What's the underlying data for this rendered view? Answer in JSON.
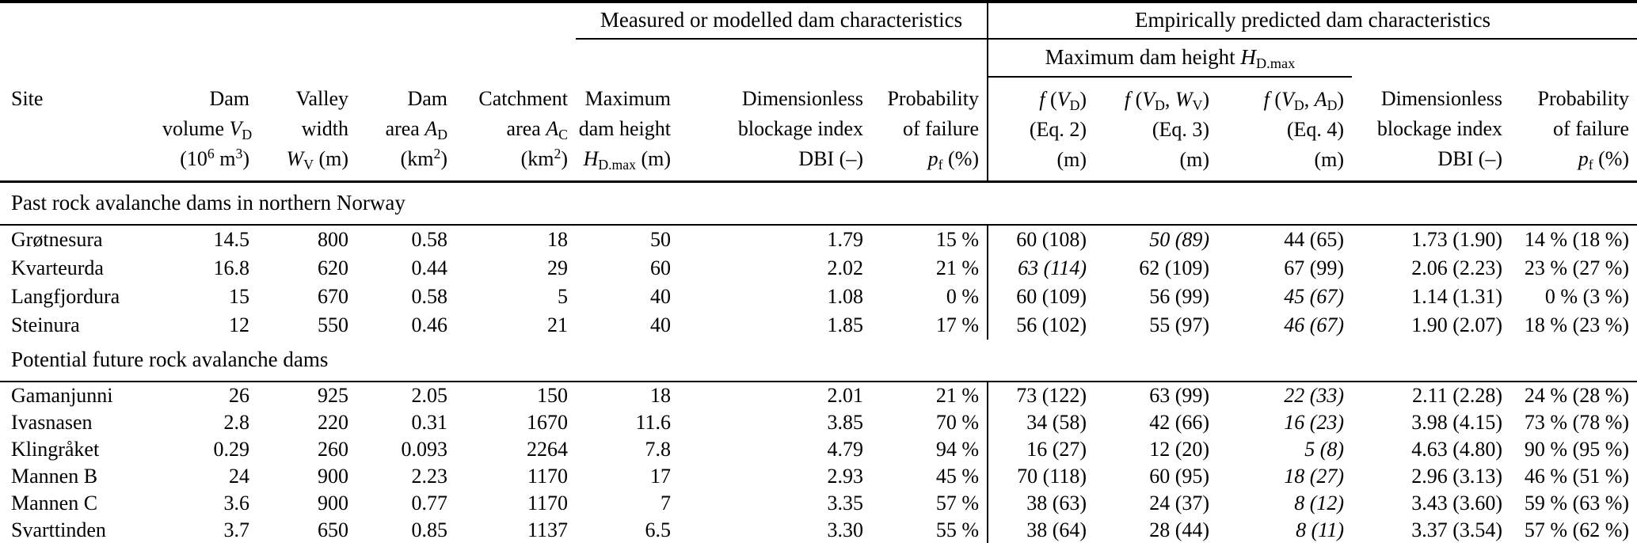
{
  "colors": {
    "background": "#ffffff",
    "text": "#000000",
    "rules": "#000000"
  },
  "table": {
    "groups": {
      "measured": "Measured or modelled dam characteristics",
      "predicted": "Empirically predicted dam characteristics",
      "max_height": "Maximum dam height <i>H</i><sub>D.max</sub>"
    },
    "columns": [
      "Site",
      "Dam<br>volume <i>V</i><sub>D</sub><br>(10<sup>6</sup> m<sup>3</sup>)",
      "Valley<br>width<br><i>W</i><sub>V</sub> (m)",
      "Dam<br>area <i>A</i><sub>D</sub><br>(km<sup>2</sup>)",
      "Catchment<br>area <i>A</i><sub>C</sub><br>(km<sup>2</sup>)",
      "Maximum<br>dam height<br><i>H</i><sub>D.max</sub> (m)",
      "Dimensionless<br>blockage index<br>DBI (–)",
      "Probability<br>of failure<br><i>p</i><sub>f</sub> (%)",
      "<i>f</i> (<i>V</i><sub>D</sub>)<br>(Eq. 2)<br>(m)",
      "<i>f</i> (<i>V</i><sub>D</sub>, <i>W</i><sub>V</sub>)<br>(Eq. 3)<br>(m)",
      "<i>f</i> (<i>V</i><sub>D</sub>, <i>A</i><sub>D</sub>)<br>(Eq. 4)<br>(m)",
      "Dimensionless<br>blockage index<br>DBI (–)",
      "Probability<br>of failure<br><i>p</i><sub>f</sub> (%)"
    ],
    "sections": [
      {
        "title": "Past rock avalanche dams in northern Norway",
        "rows": [
          {
            "site": "Grøtnesura",
            "values": [
              "14.5",
              "800",
              "0.58",
              "18",
              "50",
              "1.79",
              "15 %",
              "60 (108)",
              "50 (89)",
              "44 (65)",
              "1.73 (1.90)",
              "14 % (18 %)"
            ],
            "italic_value_indexes": [
              8
            ]
          },
          {
            "site": "Kvarteurda",
            "values": [
              "16.8",
              "620",
              "0.44",
              "29",
              "60",
              "2.02",
              "21 %",
              "63 (114)",
              "62 (109)",
              "67 (99)",
              "2.06 (2.23)",
              "23 % (27 %)"
            ],
            "italic_value_indexes": [
              7
            ]
          },
          {
            "site": "Langfjordura",
            "values": [
              "15",
              "670",
              "0.58",
              "5",
              "40",
              "1.08",
              "0 %",
              "60 (109)",
              "56 (99)",
              "45 (67)",
              "1.14 (1.31)",
              "0 % (3 %)"
            ],
            "italic_value_indexes": [
              9
            ]
          },
          {
            "site": "Steinura",
            "values": [
              "12",
              "550",
              "0.46",
              "21",
              "40",
              "1.85",
              "17 %",
              "56 (102)",
              "55 (97)",
              "46 (67)",
              "1.90 (2.07)",
              "18 % (23 %)"
            ],
            "italic_value_indexes": [
              9
            ]
          }
        ]
      },
      {
        "title": "Potential future rock avalanche dams",
        "rows": [
          {
            "site": "Gamanjunni",
            "values": [
              "26",
              "925",
              "2.05",
              "150",
              "18",
              "2.01",
              "21 %",
              "73 (122)",
              "63 (99)",
              "22 (33)",
              "2.11 (2.28)",
              "24 % (28 %)"
            ],
            "italic_value_indexes": [
              9
            ]
          },
          {
            "site": "Ivasnasen",
            "values": [
              "2.8",
              "220",
              "0.31",
              "1670",
              "11.6",
              "3.85",
              "70 %",
              "34 (58)",
              "42 (66)",
              "16 (23)",
              "3.98 (4.15)",
              "73 % (78 %)"
            ],
            "italic_value_indexes": [
              9
            ]
          },
          {
            "site": "Klingråket",
            "values": [
              "0.29",
              "260",
              "0.093",
              "2264",
              "7.8",
              "4.79",
              "94 %",
              "16 (27)",
              "12 (20)",
              "5 (8)",
              "4.63 (4.80)",
              "90 % (95 %)"
            ],
            "italic_value_indexes": [
              9
            ]
          },
          {
            "site": "Mannen B",
            "values": [
              "24",
              "900",
              "2.23",
              "1170",
              "17",
              "2.93",
              "45 %",
              "70 (118)",
              "60 (95)",
              "18 (27)",
              "2.96 (3.13)",
              "46 % (51 %)"
            ],
            "italic_value_indexes": [
              9
            ]
          },
          {
            "site": "Mannen C",
            "values": [
              "3.6",
              "900",
              "0.77",
              "1170",
              "7",
              "3.35",
              "57 %",
              "38 (63)",
              "24 (37)",
              "8 (12)",
              "3.43 (3.60)",
              "59 % (63 %)"
            ],
            "italic_value_indexes": [
              9
            ]
          },
          {
            "site": "Svarttinden",
            "values": [
              "3.7",
              "650",
              "0.85",
              "1137",
              "6.5",
              "3.30",
              "55 %",
              "38 (64)",
              "28 (44)",
              "8 (11)",
              "3.37 (3.54)",
              "57 % (62 %)"
            ],
            "italic_value_indexes": [
              9
            ]
          }
        ]
      }
    ]
  }
}
